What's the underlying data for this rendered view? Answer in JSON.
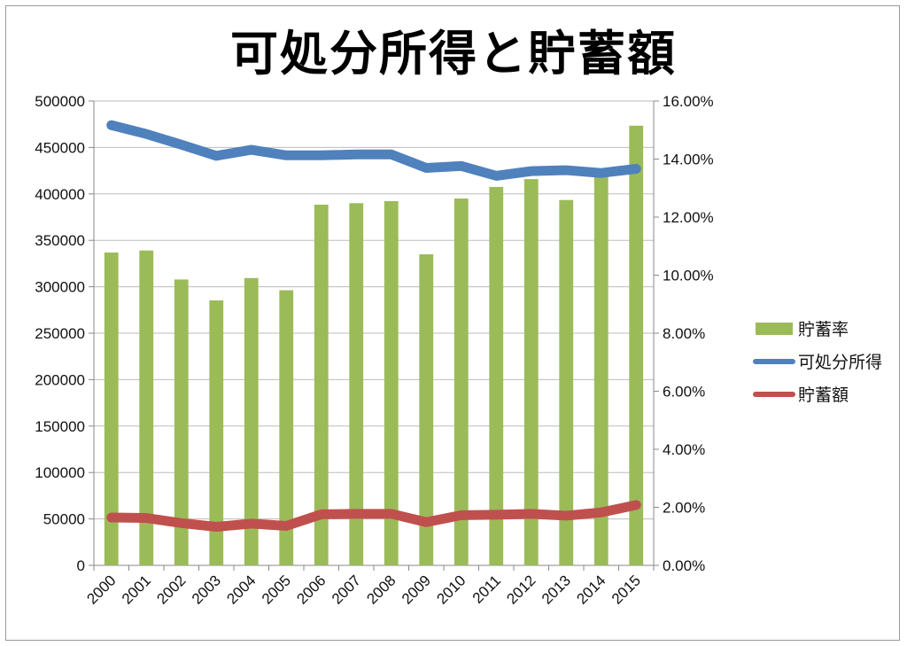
{
  "chart_data": {
    "type": "bar",
    "title": "可処分所得と貯蓄額",
    "categories": [
      "2000",
      "2001",
      "2002",
      "2003",
      "2004",
      "2005",
      "2006",
      "2007",
      "2008",
      "2009",
      "2010",
      "2011",
      "2012",
      "2013",
      "2014",
      "2015"
    ],
    "left_axis": {
      "min": 0,
      "max": 500000,
      "step": 50000,
      "ticks": [
        "0",
        "50000",
        "100000",
        "150000",
        "200000",
        "250000",
        "300000",
        "350000",
        "400000",
        "450000",
        "500000"
      ]
    },
    "right_axis": {
      "min": 0,
      "max": 0.16,
      "step": 0.02,
      "ticks": [
        "0.00%",
        "2.00%",
        "4.00%",
        "6.00%",
        "8.00%",
        "10.00%",
        "12.00%",
        "14.00%",
        "16.00%"
      ]
    },
    "series": [
      {
        "name": "貯蓄率",
        "kind": "bar",
        "axis": "right",
        "color": "#9bbb59",
        "values": [
          0.1078,
          0.1085,
          0.0985,
          0.0913,
          0.099,
          0.0948,
          0.1243,
          0.1248,
          0.1255,
          0.1072,
          0.1264,
          0.1304,
          0.1331,
          0.1259,
          0.1353,
          0.1515
        ]
      },
      {
        "name": "可処分所得",
        "kind": "line",
        "axis": "left",
        "color": "#4f81bd",
        "values": [
          474000,
          464500,
          453000,
          441000,
          447500,
          441500,
          441500,
          442500,
          442500,
          428000,
          430000,
          419500,
          424500,
          425500,
          422500,
          427000
        ]
      },
      {
        "name": "貯蓄額",
        "kind": "line",
        "axis": "left",
        "color": "#c0504d",
        "values": [
          51500,
          51000,
          45500,
          41500,
          45000,
          42500,
          55000,
          55500,
          55500,
          46500,
          54000,
          54500,
          55500,
          53500,
          57000,
          65000
        ]
      }
    ],
    "legend_position": "right",
    "grid": true
  }
}
